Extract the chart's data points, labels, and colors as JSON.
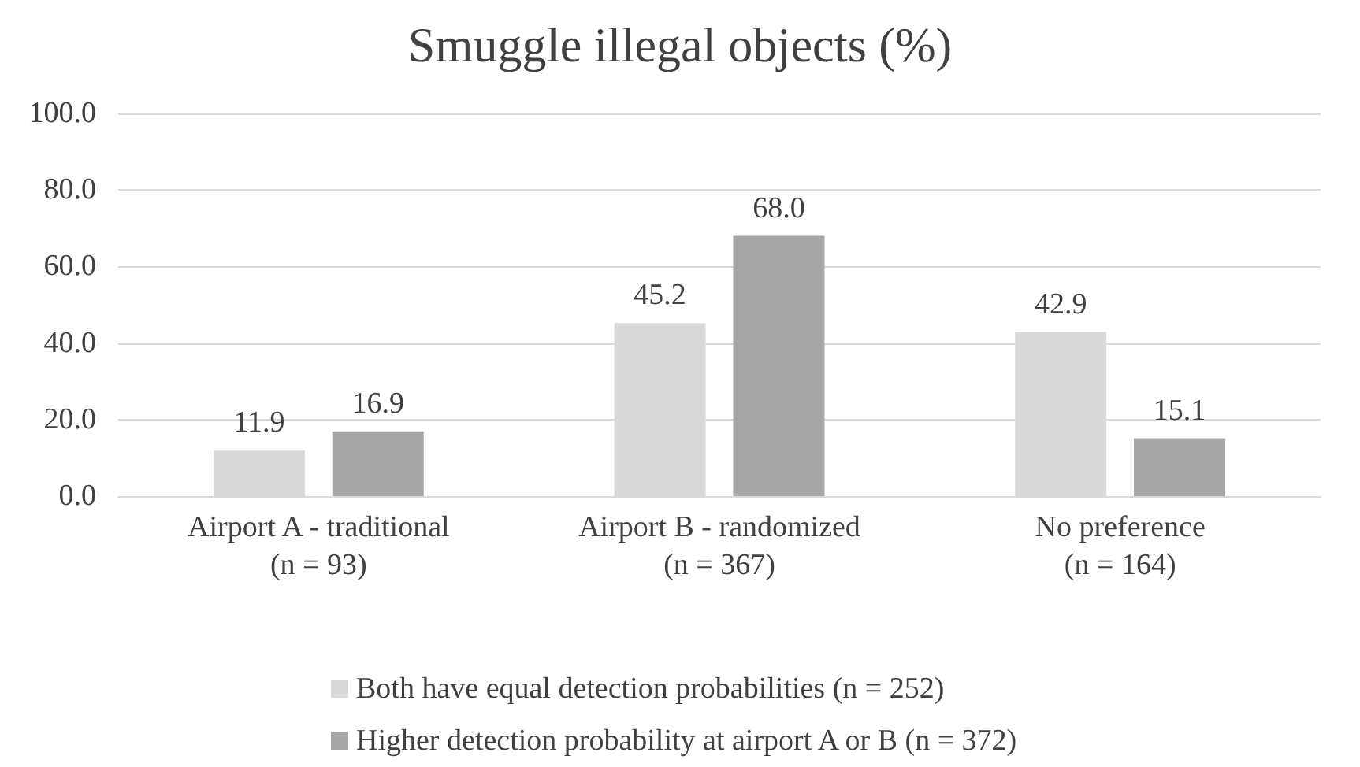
{
  "chart_data": {
    "type": "bar",
    "title": "Smuggle illegal objects (%)",
    "categories": [
      "Airport A - traditional\n(n = 93)",
      "Airport B - randomized\n(n = 367)",
      "No preference\n(n = 164)"
    ],
    "series": [
      {
        "name": "Both have equal detection probabilities (n = 252)",
        "color": "#d9d9d9",
        "values": [
          11.9,
          45.2,
          42.9
        ],
        "value_labels": [
          "11.9",
          "45.2",
          "42.9"
        ]
      },
      {
        "name": "Higher detection probability at airport A or B (n = 372)",
        "color": "#a6a6a6",
        "values": [
          16.9,
          68.0,
          15.1
        ],
        "value_labels": [
          "16.9",
          "68.0",
          "15.1"
        ]
      }
    ],
    "ylim": [
      0,
      100
    ],
    "yticks": [
      {
        "value": 0,
        "label": "0.0"
      },
      {
        "value": 20,
        "label": "20.0"
      },
      {
        "value": 40,
        "label": "40.0"
      },
      {
        "value": 60,
        "label": "60.0"
      },
      {
        "value": 80,
        "label": "80.0"
      },
      {
        "value": 100,
        "label": "100.0"
      }
    ],
    "grid": "y",
    "legend": "bottom"
  }
}
